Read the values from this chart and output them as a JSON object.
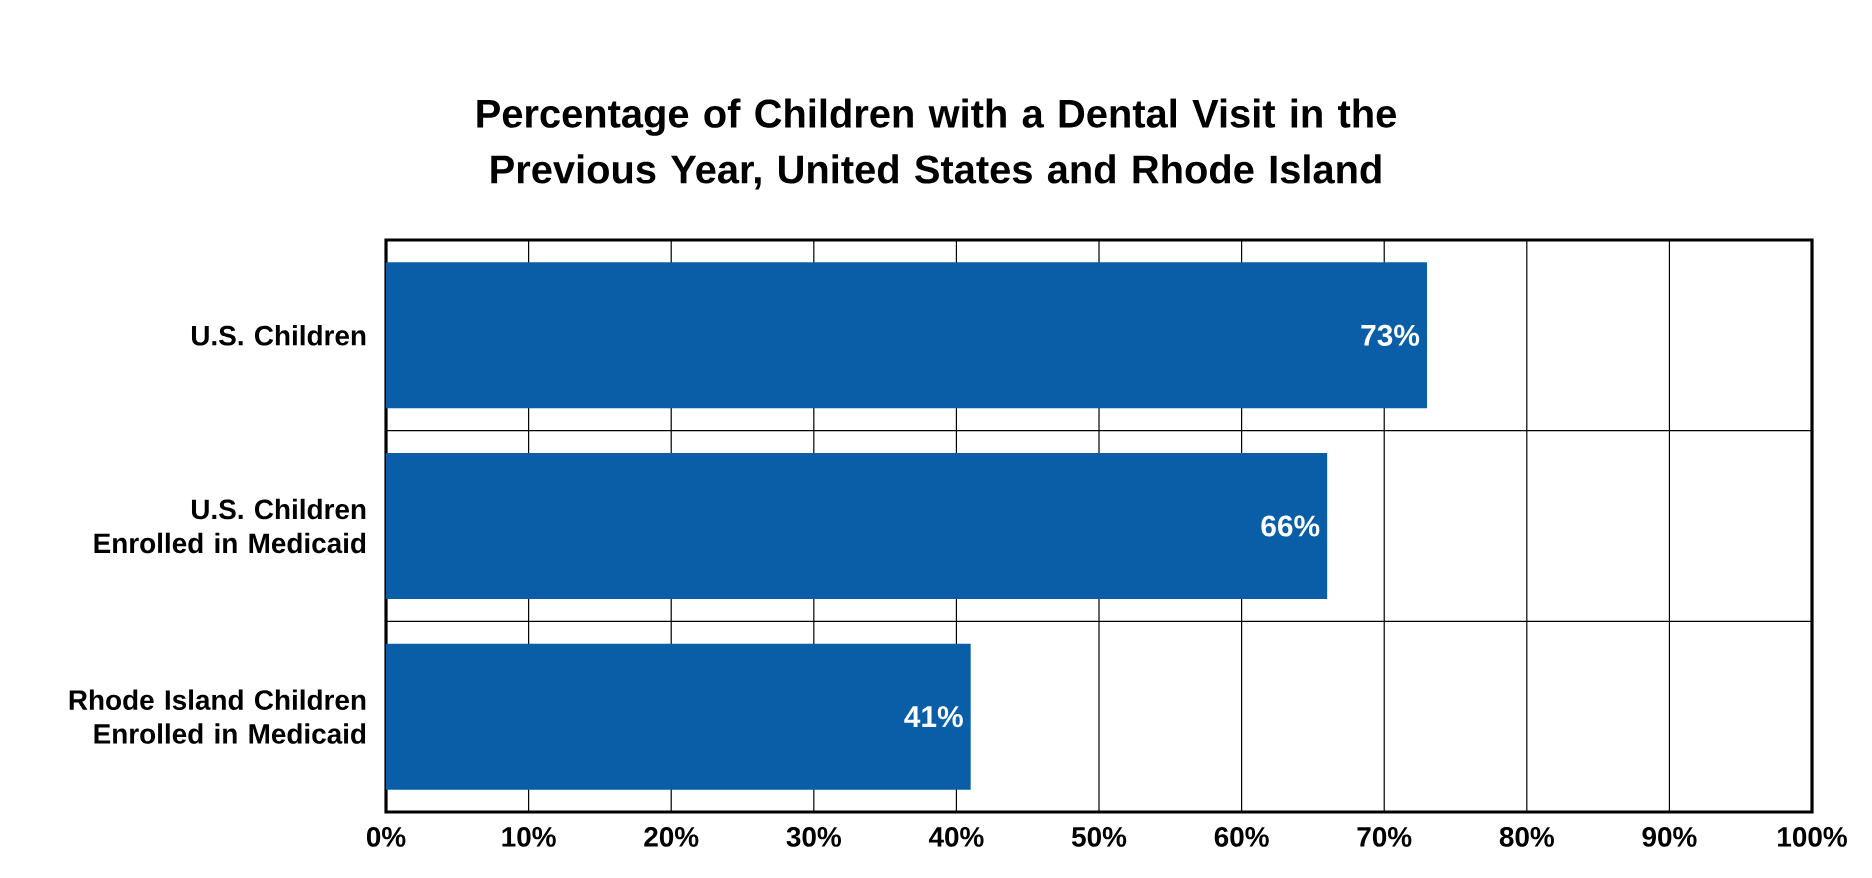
{
  "chart_data": {
    "type": "bar",
    "orientation": "horizontal",
    "title": "Percentage of Children with a Dental Visit in the Previous Year, United States and Rhode Island",
    "categories": [
      "U.S. Children",
      "U.S. Children Enrolled in Medicaid",
      "Rhode Island Children Enrolled in Medicaid"
    ],
    "values": [
      73,
      66,
      41
    ],
    "color": "#0a5ea8",
    "value_labels": [
      "73%",
      "66%",
      "41%"
    ],
    "xlim": [
      0,
      100
    ],
    "xticks": [
      {
        "value": 0,
        "label": "0%"
      },
      {
        "value": 10,
        "label": "10%"
      },
      {
        "value": 20,
        "label": "20%"
      },
      {
        "value": 30,
        "label": "30%"
      },
      {
        "value": 40,
        "label": "40%"
      },
      {
        "value": 50,
        "label": "50%"
      },
      {
        "value": 60,
        "label": "60%"
      },
      {
        "value": 70,
        "label": "70%"
      },
      {
        "value": 80,
        "label": "80%"
      },
      {
        "value": 90,
        "label": "90%"
      },
      {
        "value": 100,
        "label": "100%"
      }
    ],
    "grid": "x"
  }
}
